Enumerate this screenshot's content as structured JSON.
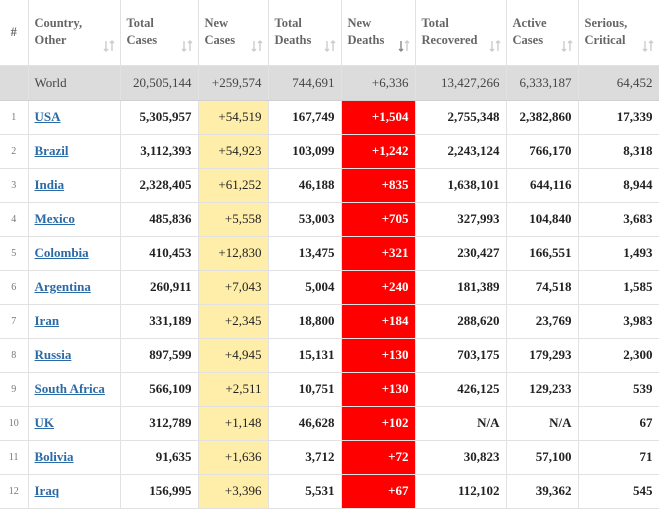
{
  "table": {
    "headers": [
      [
        "#"
      ],
      [
        "Country,",
        "Other"
      ],
      [
        "Total",
        "Cases"
      ],
      [
        "New",
        "Cases"
      ],
      [
        "Total",
        "Deaths"
      ],
      [
        "New",
        "Deaths"
      ],
      [
        "Total",
        "Recovered"
      ],
      [
        "Active",
        "Cases"
      ],
      [
        "Serious,",
        "Critical"
      ]
    ],
    "world": [
      "World",
      "20,505,144",
      "+259,574",
      "744,691",
      "+6,336",
      "13,427,266",
      "6,333,187",
      "64,452"
    ],
    "rows": [
      [
        "1",
        "USA",
        "5,305,957",
        "+54,519",
        "167,749",
        "+1,504",
        "2,755,348",
        "2,382,860",
        "17,339"
      ],
      [
        "2",
        "Brazil",
        "3,112,393",
        "+54,923",
        "103,099",
        "+1,242",
        "2,243,124",
        "766,170",
        "8,318"
      ],
      [
        "3",
        "India",
        "2,328,405",
        "+61,252",
        "46,188",
        "+835",
        "1,638,101",
        "644,116",
        "8,944"
      ],
      [
        "4",
        "Mexico",
        "485,836",
        "+5,558",
        "53,003",
        "+705",
        "327,993",
        "104,840",
        "3,683"
      ],
      [
        "5",
        "Colombia",
        "410,453",
        "+12,830",
        "13,475",
        "+321",
        "230,427",
        "166,551",
        "1,493"
      ],
      [
        "6",
        "Argentina",
        "260,911",
        "+7,043",
        "5,004",
        "+240",
        "181,389",
        "74,518",
        "1,585"
      ],
      [
        "7",
        "Iran",
        "331,189",
        "+2,345",
        "18,800",
        "+184",
        "288,620",
        "23,769",
        "3,983"
      ],
      [
        "8",
        "Russia",
        "897,599",
        "+4,945",
        "15,131",
        "+130",
        "703,175",
        "179,293",
        "2,300"
      ],
      [
        "9",
        "South Africa",
        "566,109",
        "+2,511",
        "10,751",
        "+130",
        "426,125",
        "129,233",
        "539"
      ],
      [
        "10",
        "UK",
        "312,789",
        "+1,148",
        "46,628",
        "+102",
        "N/A",
        "N/A",
        "67"
      ],
      [
        "11",
        "Bolivia",
        "91,635",
        "+1,636",
        "3,712",
        "+72",
        "30,823",
        "57,100",
        "71"
      ],
      [
        "12",
        "Iraq",
        "156,995",
        "+3,396",
        "5,531",
        "+67",
        "112,102",
        "39,362",
        "545"
      ]
    ]
  }
}
